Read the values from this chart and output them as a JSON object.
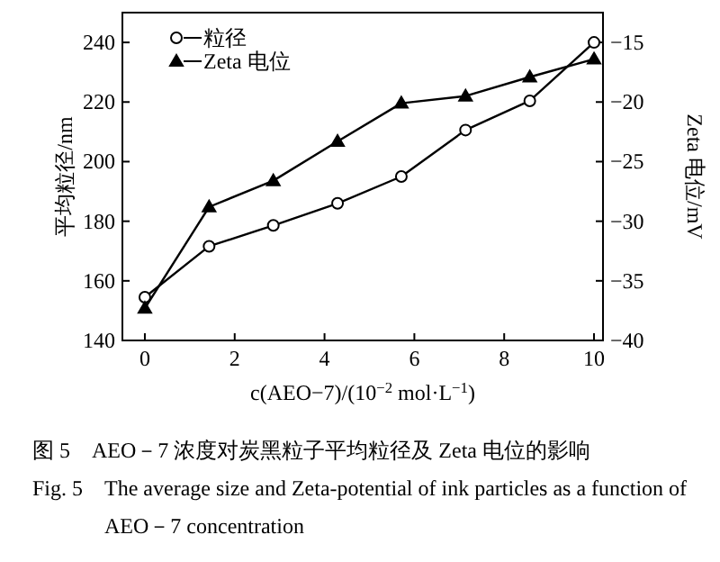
{
  "chart_data": {
    "type": "line",
    "xlabel": "c(AEO−7)/(10$^{−2}$ mol·L$^{−1}$)",
    "ylabel": "平均粒径/nm",
    "y2label": "Zeta 电位/mV",
    "x": [
      0,
      1.43,
      2.86,
      4.29,
      5.71,
      7.14,
      8.57,
      10
    ],
    "series": [
      {
        "name": "粒径",
        "color": "#000000",
        "marker": "circle",
        "values": [
          154.5,
          171.6,
          178.6,
          186,
          195,
          210.6,
          220.4,
          240
        ]
      },
      {
        "name": "Zeta 电位",
        "color": "#000000",
        "marker": "triangle",
        "axis": "y2",
        "values": [
          -37.3,
          -28.8,
          -26.6,
          -23.3,
          -20.1,
          -19.5,
          -17.9,
          -16.4
        ]
      }
    ],
    "xlim": [
      -0.5,
      10.2
    ],
    "xticks": [
      0,
      2,
      4,
      6,
      8,
      10
    ],
    "ylim": [
      140,
      250
    ],
    "yticks": [
      140,
      160,
      180,
      200,
      220,
      240
    ],
    "y2lim": [
      -40,
      -12.5
    ],
    "y2ticks": [
      -40,
      -35,
      -30,
      -25,
      -20,
      -15
    ],
    "legend": "top left",
    "annotations": [
      "图 5　AEO－7 浓度对炭黑粒子平均粒径及 Zeta 电位的影响",
      "Fig. 5　The average size and Zeta-potential of ink particles as a function of AEO－7 concentration"
    ]
  }
}
